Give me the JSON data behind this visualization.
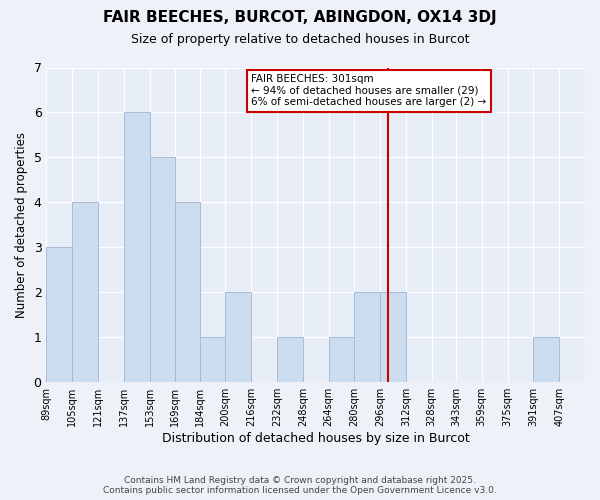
{
  "title": "FAIR BEECHES, BURCOT, ABINGDON, OX14 3DJ",
  "subtitle": "Size of property relative to detached houses in Burcot",
  "xlabel": "Distribution of detached houses by size in Burcot",
  "ylabel": "Number of detached properties",
  "bins": [
    89,
    105,
    121,
    137,
    153,
    169,
    184,
    200,
    216,
    232,
    248,
    264,
    280,
    296,
    312,
    328,
    343,
    359,
    375,
    391,
    407
  ],
  "counts": [
    3,
    4,
    0,
    6,
    5,
    4,
    1,
    2,
    0,
    1,
    0,
    1,
    2,
    2,
    0,
    0,
    0,
    0,
    0,
    1,
    0
  ],
  "bar_color": "#ccddf0",
  "bar_edge_color": "#aabbd8",
  "vline_x": 301,
  "vline_color": "#cc0000",
  "annotation_title": "FAIR BEECHES: 301sqm",
  "annotation_line1": "← 94% of detached houses are smaller (29)",
  "annotation_line2": "6% of semi-detached houses are larger (2) →",
  "annotation_box_facecolor": "#ffffff",
  "annotation_border_color": "#cc0000",
  "ylim": [
    0,
    7
  ],
  "yticks": [
    0,
    1,
    2,
    3,
    4,
    5,
    6,
    7
  ],
  "footer_line1": "Contains HM Land Registry data © Crown copyright and database right 2025.",
  "footer_line2": "Contains public sector information licensed under the Open Government Licence v3.0.",
  "background_color": "#eef2f8",
  "grid_color": "#ffffff",
  "plot_bg_color": "#e8eef8"
}
